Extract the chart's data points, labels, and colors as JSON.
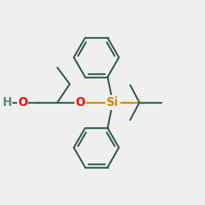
{
  "bg_color": "#efefef",
  "line_color": "#2d5a50",
  "O_color": "#ff0000",
  "Si_color": "#cc8800",
  "H_color": "#5a8a80",
  "line_width": 1.8,
  "figsize": [
    3.0,
    3.0
  ],
  "dpi": 100,
  "xlim": [
    0,
    10
  ],
  "ylim": [
    0,
    10
  ]
}
